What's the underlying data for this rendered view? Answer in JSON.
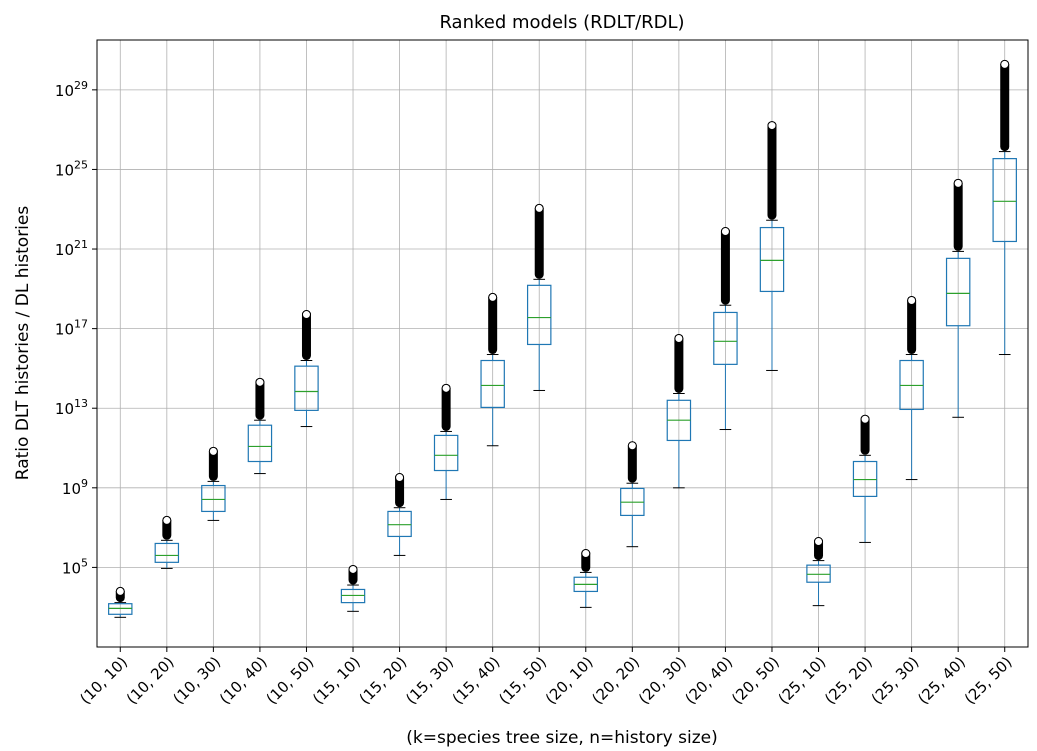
{
  "chart_data": {
    "type": "box",
    "title": "Ranked models (RDLT/RDL)",
    "xlabel": "(k=species tree size, n=history size)",
    "ylabel": "Ratio DLT histories / DL histories",
    "log_y": true,
    "grid": true,
    "box_color": "#1f77b4",
    "median_color": "#2ca02c",
    "flier_color": "#000000",
    "ylim": [
      10,
      3.2e+31
    ],
    "yticks": [
      {
        "value": 100000.0,
        "label": "10^5"
      },
      {
        "value": 1000000000.0,
        "label": "10^9"
      },
      {
        "value": 10000000000000.0,
        "label": "10^13"
      },
      {
        "value": 1e+17,
        "label": "10^17"
      },
      {
        "value": 1e+21,
        "label": "10^21"
      },
      {
        "value": 1e+25,
        "label": "10^25"
      },
      {
        "value": 1e+29,
        "label": "10^29"
      }
    ],
    "categories": [
      "(10, 10)",
      "(10, 20)",
      "(10, 30)",
      "(10, 40)",
      "(10, 50)",
      "(15, 10)",
      "(15, 20)",
      "(15, 30)",
      "(15, 40)",
      "(15, 50)",
      "(20, 10)",
      "(20, 20)",
      "(20, 30)",
      "(20, 40)",
      "(20, 50)",
      "(25, 10)",
      "(25, 20)",
      "(25, 30)",
      "(25, 40)",
      "(25, 50)"
    ],
    "boxes": [
      {
        "low": 310.0,
        "q1": 440.0,
        "median": 870.0,
        "q3": 1500.0,
        "high": 1700.0,
        "flier_max": 6200.0
      },
      {
        "low": 89000.0,
        "q1": 180000.0,
        "median": 400000.0,
        "q3": 1600000.0,
        "high": 2300000.0,
        "flier_max": 23000000.0
      },
      {
        "low": 23000000.0,
        "q1": 65000000.0,
        "median": 260000000.0,
        "q3": 1300000000.0,
        "high": 2100000000.0,
        "flier_max": 68000000000.0
      },
      {
        "low": 5200000000.0,
        "q1": 21000000000.0,
        "median": 120000000000.0,
        "q3": 1400000000000.0,
        "high": 2500000000000.0,
        "flier_max": 200000000000000.0
      },
      {
        "low": 1200000000000.0,
        "q1": 7800000000000.0,
        "median": 69000000000000.0,
        "q3": 1300000000000000.0,
        "high": 2500000000000000.0,
        "flier_max": 5.1e+17
      },
      {
        "low": 620.0,
        "q1": 1700.0,
        "median": 3900.0,
        "q3": 7800.0,
        "high": 13000.0,
        "flier_max": 79000.0
      },
      {
        "low": 400000.0,
        "q1": 3600000.0,
        "median": 14000000.0,
        "q3": 65000000.0,
        "high": 100000000.0,
        "flier_max": 3300000000.0
      },
      {
        "low": 260000000.0,
        "q1": 7400000000.0,
        "median": 43000000000.0,
        "q3": 430000000000.0,
        "high": 680000000000.0,
        "flier_max": 100000000000000.0
      },
      {
        "low": 130000000000.0,
        "q1": 11000000000000.0,
        "median": 140000000000000.0,
        "q3": 2500000000000000.0,
        "high": 5000000000000000.0,
        "flier_max": 3.7e+18
      },
      {
        "low": 78000000000000.0,
        "q1": 1.6e+16,
        "median": 3.6e+17,
        "q3": 1.5e+19,
        "high": 3e+19,
        "flier_max": 1.1e+23
      },
      {
        "low": 980.0,
        "q1": 6200.0,
        "median": 14000.0,
        "q3": 32000.0,
        "high": 56000.0,
        "flier_max": 500000.0
      },
      {
        "low": 1100000.0,
        "q1": 41000000.0,
        "median": 190000000.0,
        "q3": 930000000.0,
        "high": 1700000000.0,
        "flier_max": 130000000000.0
      },
      {
        "low": 1000000000.0,
        "q1": 240000000000.0,
        "median": 2500000000000.0,
        "q3": 25000000000000.0,
        "high": 55000000000000.0,
        "flier_max": 3.2e+16
      },
      {
        "low": 850000000000.0,
        "q1": 1600000000000000.0,
        "median": 2.3e+16,
        "q3": 6.5e+17,
        "high": 1.5e+18,
        "flier_max": 7.6e+21
      },
      {
        "low": 790000000000000.0,
        "q1": 7.4e+18,
        "median": 2.7e+20,
        "q3": 1.2e+22,
        "high": 2.8e+22,
        "flier_max": 1.6e+27
      },
      {
        "low": 1200.0,
        "q1": 18000.0,
        "median": 45000.0,
        "q3": 130000.0,
        "high": 220000.0,
        "flier_max": 2000000.0
      },
      {
        "low": 1800000.0,
        "q1": 370000000.0,
        "median": 2600000000.0,
        "q3": 21000000000.0,
        "high": 43000000000.0,
        "flier_max": 2800000000000.0
      },
      {
        "low": 2600000000.0,
        "q1": 8700000000000.0,
        "median": 140000000000000.0,
        "q3": 2500000000000000.0,
        "high": 5000000000000000.0,
        "flier_max": 2.6e+18
      },
      {
        "low": 3500000000000.0,
        "q1": 1.4e+17,
        "median": 5.9e+18,
        "q3": 3.4e+20,
        "high": 7.6e+20,
        "flier_max": 2e+24
      },
      {
        "low": 5000000000000000.0,
        "q1": 2.4e+21,
        "median": 2.5e+23,
        "q3": 3.5e+25,
        "high": 7.9e+25,
        "flier_max": 1.9e+30
      }
    ]
  }
}
